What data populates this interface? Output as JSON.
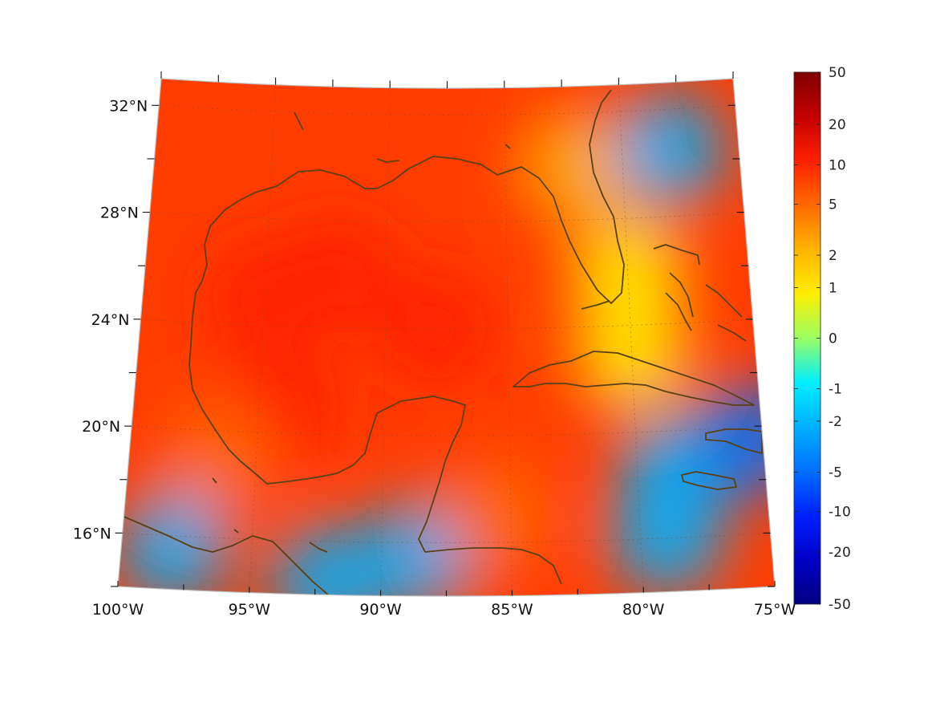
{
  "map": {
    "projection": "conic",
    "lon_range": [
      -100,
      -75
    ],
    "lat_range": [
      14,
      33
    ],
    "grid": true,
    "frame_color": "#bfbfbf",
    "coastline_color": "#5a4015",
    "lat_ticks": [
      {
        "value": 32,
        "label": "32°N"
      },
      {
        "value": 28,
        "label": "28°N"
      },
      {
        "value": 24,
        "label": "24°N"
      },
      {
        "value": 20,
        "label": "20°N"
      },
      {
        "value": 16,
        "label": "16°N"
      }
    ],
    "lon_ticks": [
      {
        "value": -100,
        "label": "100°W"
      },
      {
        "value": -95,
        "label": "95°W"
      },
      {
        "value": -90,
        "label": "90°W"
      },
      {
        "value": -85,
        "label": "85°W"
      },
      {
        "value": -80,
        "label": "80°W"
      },
      {
        "value": -75,
        "label": "75°W"
      }
    ]
  },
  "field_anomalies": [
    {
      "lon": -95,
      "lat": 25,
      "value": 15
    },
    {
      "lon": -92,
      "lat": 26,
      "value": 18
    },
    {
      "lon": -88,
      "lat": 24,
      "value": 12
    },
    {
      "lon": -94,
      "lat": 21,
      "value": 14
    },
    {
      "lon": -96.5,
      "lat": 19,
      "value": 8
    },
    {
      "lon": -82,
      "lat": 30,
      "value": 2
    },
    {
      "lon": -78,
      "lat": 30.5,
      "value": -1.5
    },
    {
      "lon": -80,
      "lat": 26,
      "value": 1.2
    },
    {
      "lon": -80,
      "lat": 23,
      "value": 1
    },
    {
      "lon": -78.5,
      "lat": 18.5,
      "value": -2
    },
    {
      "lon": -75.5,
      "lat": 19.5,
      "value": -5
    },
    {
      "lon": -79,
      "lat": 16,
      "value": -1.2
    },
    {
      "lon": -98,
      "lat": 15.5,
      "value": -2
    },
    {
      "lon": -92,
      "lat": 14.5,
      "value": -2
    },
    {
      "lon": -88.5,
      "lat": 15.5,
      "value": -1.5
    },
    {
      "lon": -85.5,
      "lat": 17,
      "value": 8
    }
  ],
  "colorbar": {
    "labels": [
      "50",
      "20",
      "10",
      "5",
      "2",
      "1",
      "0",
      "-1",
      "-2",
      "-5",
      "-10",
      "-20",
      "-50"
    ],
    "colors": [
      "#7f0000",
      "#c40000",
      "#ff2000",
      "#ff6a00",
      "#ffb300",
      "#ffee00",
      "#9aff62",
      "#00eeff",
      "#00b0ff",
      "#0070ff",
      "#0020ff",
      "#0000c8",
      "#00007f"
    ]
  }
}
